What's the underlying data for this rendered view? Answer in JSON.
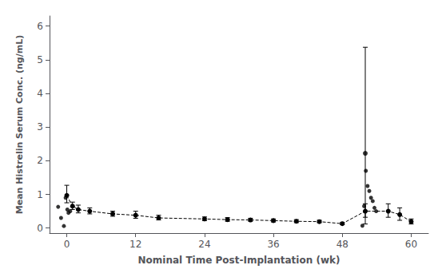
{
  "chart_data": {
    "type": "line",
    "xlabel": "Nominal Time Post-Implantation (wk)",
    "ylabel": "Mean Histrelin Serum Conc. (ng/mL)",
    "xlim": [
      -3,
      63
    ],
    "ylim": [
      -0.15,
      6.3
    ],
    "xticks": [
      0,
      12,
      24,
      36,
      48,
      60
    ],
    "yticks": [
      0,
      1,
      2,
      3,
      4,
      5,
      6
    ],
    "grid": false,
    "series": [
      {
        "type": "line",
        "line_style": "dashed",
        "marker": "circle",
        "color": "#000000",
        "x": [
          0,
          1,
          2,
          4,
          8,
          12,
          16,
          24,
          28,
          32,
          36,
          40,
          44,
          48,
          52,
          56,
          58,
          60
        ],
        "values": [
          0.97,
          0.65,
          0.55,
          0.5,
          0.42,
          0.38,
          0.3,
          0.27,
          0.25,
          0.24,
          0.22,
          0.2,
          0.19,
          0.13,
          0.5,
          0.5,
          0.4,
          0.19
        ],
        "error_low": [
          0.22,
          0.1,
          0.1,
          0.08,
          0.07,
          0.09,
          0.06,
          0.05,
          0.05,
          0.04,
          0.04,
          0.04,
          0.03,
          0.03,
          0.18,
          0.18,
          0.17,
          0.07
        ],
        "error_high": [
          0.3,
          0.12,
          0.13,
          0.1,
          0.08,
          0.12,
          0.08,
          0.06,
          0.06,
          0.05,
          0.05,
          0.05,
          0.04,
          0.03,
          0.22,
          0.22,
          0.2,
          0.08
        ]
      },
      {
        "type": "scatter",
        "marker": "circle",
        "color": "#000000",
        "x": [
          52
        ],
        "values": [
          2.22
        ],
        "error_low": [
          2.1
        ],
        "error_high": [
          3.15
        ]
      },
      {
        "type": "scatter",
        "marker": "circle",
        "color": "#000000",
        "x": [
          -1.5,
          -1.0,
          -0.5,
          -0.2,
          0.1,
          0.3,
          0.6,
          51.5,
          51.8,
          52.1,
          52.4,
          52.7,
          53.0,
          53.3,
          53.6,
          53.9
        ],
        "values": [
          0.63,
          0.3,
          0.06,
          0.9,
          0.55,
          0.45,
          0.5,
          0.07,
          0.65,
          1.7,
          1.25,
          1.1,
          0.9,
          0.8,
          0.6,
          0.5
        ]
      }
    ]
  }
}
